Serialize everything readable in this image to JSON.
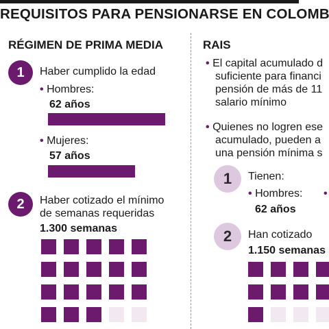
{
  "title": "REQUISITOS PARA PENSIONARSE EN COLOMBIA",
  "left": {
    "heading": "RÉGIMEN DE PRIMA MEDIA",
    "req1": {
      "number": "1",
      "text": "Haber cumplido la edad",
      "men_label": "Hombres:",
      "men_value": "62 años",
      "women_label": "Mujeres:",
      "women_value": "57 años"
    },
    "req2": {
      "number": "2",
      "text_line1": "Haber cotizado el mínimo",
      "text_line2": "de semanas requeridas",
      "weeks": "1.300 semanas"
    }
  },
  "right": {
    "heading": "RAIS",
    "bullet1": [
      "El capital acumulado d",
      "suficiente para financi",
      "pensión de más de 11",
      "salario mínimo"
    ],
    "bullet2": [
      "Quienes no logren ese",
      "acumulado, pueden a",
      "una pensión mínima s"
    ],
    "req1": {
      "number": "1",
      "text": "Tienen:",
      "men_label": "Hombres:",
      "men_value": "62 años"
    },
    "req2": {
      "number": "2",
      "text": "Han cotizado",
      "weeks": "1.150 semanas"
    }
  },
  "colors": {
    "accent": "#6b1a6d",
    "accent_light": "#ddc8e0",
    "empty_square": "#f1e8f2"
  }
}
